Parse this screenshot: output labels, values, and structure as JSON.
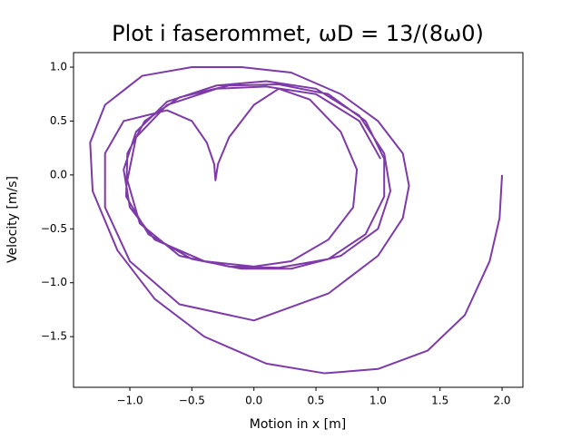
{
  "chart_data": {
    "type": "line",
    "title": "Plot i faserommet, ωD = 13/(8ω0)",
    "xlabel": "Motion in x [m]",
    "ylabel": "Velocity [m/s]",
    "xlim": [
      -1.454,
      2.168
    ],
    "ylim": [
      -1.97,
      1.135
    ],
    "xticks": [
      {
        "value": -1.0,
        "label": "−1.0"
      },
      {
        "value": -0.5,
        "label": "−0.5"
      },
      {
        "value": 0,
        "label": "0.0"
      },
      0.5,
      {
        "value": 1.0,
        "label": "1.0"
      },
      1.5,
      {
        "value": 2.0,
        "label": "2.0"
      }
    ],
    "yticks": [
      {
        "value": -1.5,
        "label": "−1.5"
      },
      {
        "value": -1.0,
        "label": "−1.0"
      },
      {
        "value": -0.5,
        "label": "−0.5"
      },
      {
        "value": 0,
        "label": "0.0"
      },
      0.5,
      {
        "value": 1.0,
        "label": "1.0"
      }
    ],
    "grid": false,
    "series": [
      {
        "color": "#7d3aa8",
        "x": [
          2,
          1.98,
          1.9,
          1.7,
          1.4,
          1.0,
          0.57,
          0.1,
          -0.4,
          -0.8,
          -1.1,
          -1.3,
          -1.32,
          -1.2,
          -0.9,
          -0.5,
          -0.1,
          0.3,
          0.7,
          1.0,
          1.2,
          1.25,
          1.2,
          1.0,
          0.6,
          0.0,
          -0.6,
          -1.0,
          -1.2,
          -1.2,
          -1.05,
          -0.7,
          -0.5,
          -0.38,
          -0.32,
          -0.31,
          -0.29,
          -0.2,
          0.0,
          0.2,
          0.45,
          0.7,
          0.83,
          0.8,
          0.6,
          0.3,
          0.0,
          -0.4,
          -0.8,
          -1.0,
          -1.05,
          -0.95,
          -0.7,
          -0.3,
          0.1,
          0.5,
          0.85,
          1.05,
          1.1,
          1.0,
          0.7,
          0.3,
          -0.1,
          -0.5,
          -0.85,
          -1.03,
          -1.02,
          -0.88,
          -0.6,
          -0.2,
          0.2,
          0.6,
          0.9,
          1.05,
          1.05,
          0.9,
          0.6,
          0.2,
          -0.2,
          -0.6,
          -0.92,
          -1.02,
          -0.95,
          -0.7,
          -0.3,
          0.1,
          0.5,
          0.85,
          1.02
        ],
        "values": [
          0,
          -0.4,
          -0.8,
          -1.3,
          -1.63,
          -1.8,
          -1.84,
          -1.75,
          -1.5,
          -1.15,
          -0.7,
          -0.15,
          0.3,
          0.65,
          0.92,
          1.0,
          1.0,
          0.95,
          0.75,
          0.5,
          0.2,
          -0.1,
          -0.4,
          -0.75,
          -1.1,
          -1.35,
          -1.2,
          -0.8,
          -0.3,
          0.2,
          0.5,
          0.6,
          0.5,
          0.3,
          0.1,
          -0.05,
          0.1,
          0.35,
          0.65,
          0.8,
          0.7,
          0.4,
          0.05,
          -0.3,
          -0.6,
          -0.8,
          -0.85,
          -0.8,
          -0.6,
          -0.3,
          0.05,
          0.4,
          0.68,
          0.83,
          0.87,
          0.8,
          0.55,
          0.2,
          -0.15,
          -0.5,
          -0.75,
          -0.87,
          -0.87,
          -0.78,
          -0.55,
          -0.2,
          0.2,
          0.5,
          0.72,
          0.83,
          0.84,
          0.75,
          0.5,
          0.15,
          -0.2,
          -0.55,
          -0.78,
          -0.86,
          -0.85,
          -0.75,
          -0.45,
          -0.05,
          0.35,
          0.65,
          0.8,
          0.82,
          0.75,
          0.5,
          0.15
        ]
      }
    ]
  }
}
